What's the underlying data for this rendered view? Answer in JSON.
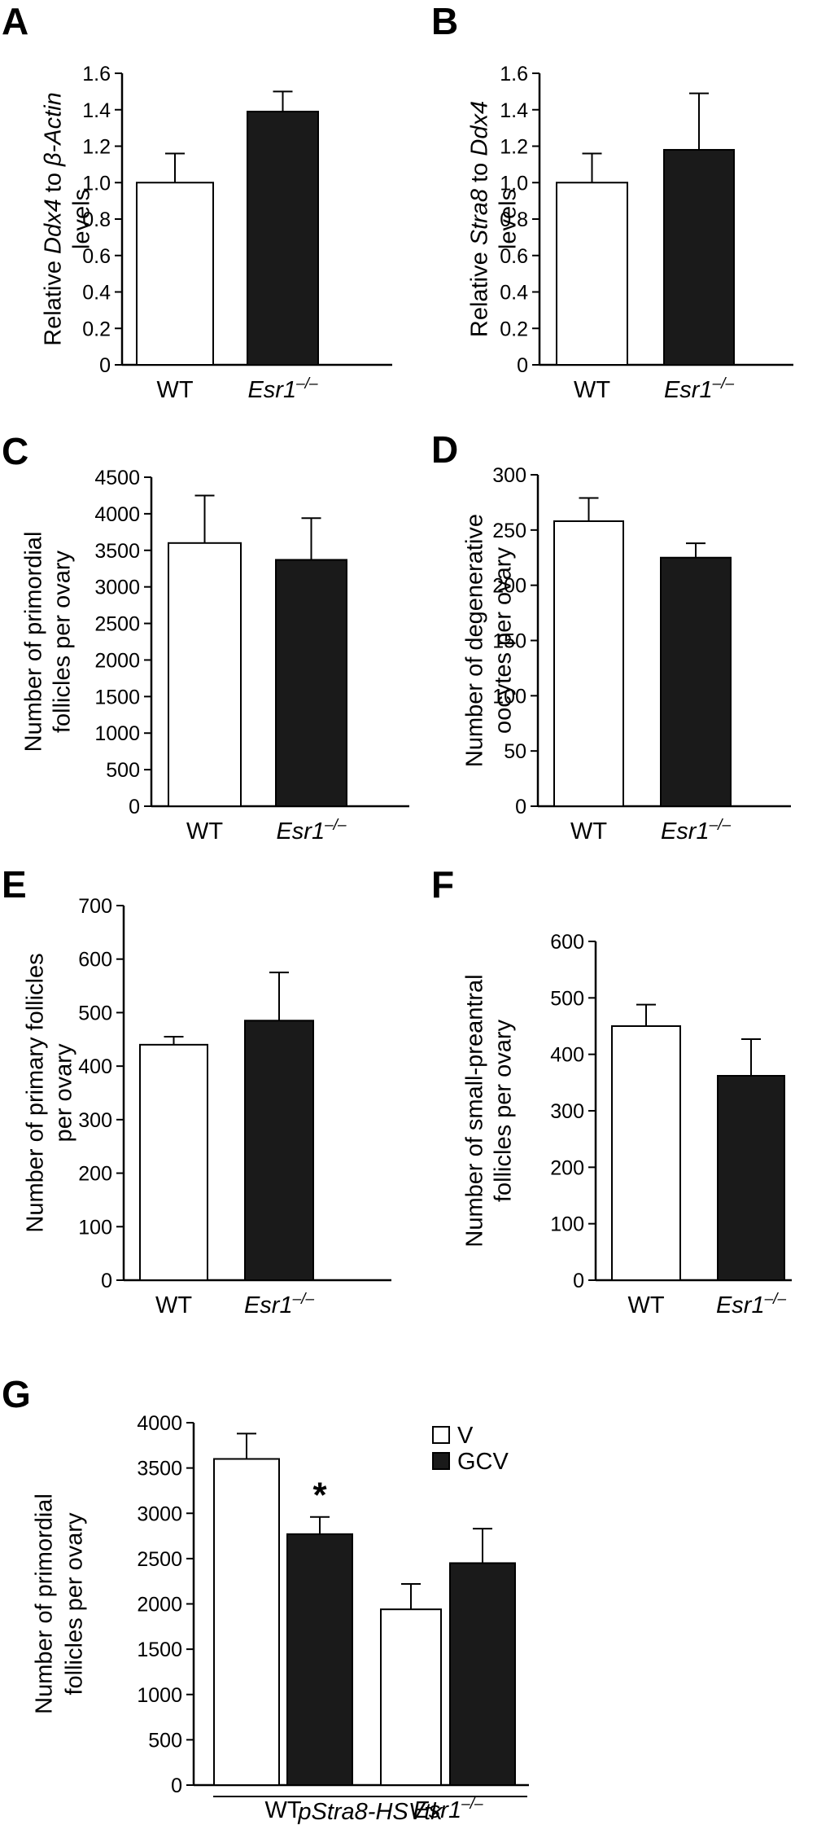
{
  "chart_data": [
    {
      "id": "A",
      "type": "bar",
      "panel_label": "A",
      "categories": [
        {
          "text": "WT",
          "sup": ""
        },
        {
          "text": "Esr1",
          "sup": "–/–",
          "italic": true
        }
      ],
      "values": [
        1.0,
        1.39
      ],
      "errors": [
        0.16,
        0.11
      ],
      "fills": [
        "#ffffff",
        "#1a1a1a"
      ],
      "ylim": [
        0,
        1.6
      ],
      "yticks": [
        0,
        0.2,
        0.4,
        0.6,
        0.8,
        1.0,
        1.2,
        1.4,
        1.6
      ],
      "ytick_labels": [
        "0",
        "0.2",
        "0.4",
        "0.6",
        "0.8",
        "1.0",
        "1.2",
        "1.4",
        "1.6"
      ],
      "ylabel_lines": [
        [
          {
            "t": "Relative "
          },
          {
            "t": "Ddx4",
            "i": true
          },
          {
            "t": " to "
          },
          {
            "t": "β-Actin",
            "i": true
          }
        ],
        [
          {
            "t": "levels"
          }
        ]
      ]
    },
    {
      "id": "B",
      "type": "bar",
      "panel_label": "B",
      "categories": [
        {
          "text": "WT",
          "sup": ""
        },
        {
          "text": "Esr1",
          "sup": "–/–",
          "italic": true
        }
      ],
      "values": [
        1.0,
        1.18
      ],
      "errors": [
        0.16,
        0.31
      ],
      "fills": [
        "#ffffff",
        "#1a1a1a"
      ],
      "ylim": [
        0,
        1.6
      ],
      "yticks": [
        0,
        0.2,
        0.4,
        0.6,
        0.8,
        1.0,
        1.2,
        1.4,
        1.6
      ],
      "ytick_labels": [
        "0",
        "0.2",
        "0.4",
        "0.6",
        "0.8",
        "1.0",
        "1.2",
        "1.4",
        "1.6"
      ],
      "ylabel_lines": [
        [
          {
            "t": "Relative "
          },
          {
            "t": "Stra8",
            "i": true
          },
          {
            "t": " to "
          },
          {
            "t": "Ddx4",
            "i": true
          }
        ],
        [
          {
            "t": "levels"
          }
        ]
      ]
    },
    {
      "id": "C",
      "type": "bar",
      "panel_label": "C",
      "categories": [
        {
          "text": "WT",
          "sup": ""
        },
        {
          "text": "Esr1",
          "sup": "–/–",
          "italic": true
        }
      ],
      "values": [
        3600,
        3370
      ],
      "errors": [
        650,
        570
      ],
      "fills": [
        "#ffffff",
        "#1a1a1a"
      ],
      "ylim": [
        0,
        4500
      ],
      "yticks": [
        0,
        500,
        1000,
        1500,
        2000,
        2500,
        3000,
        3500,
        4000,
        4500
      ],
      "ytick_labels": [
        "0",
        "500",
        "1000",
        "1500",
        "2000",
        "2500",
        "3000",
        "3500",
        "4000",
        "4500"
      ],
      "ylabel_lines": [
        [
          {
            "t": "Number of primordial"
          }
        ],
        [
          {
            "t": "follicles per ovary"
          }
        ]
      ]
    },
    {
      "id": "D",
      "type": "bar",
      "panel_label": "D",
      "categories": [
        {
          "text": "WT",
          "sup": ""
        },
        {
          "text": "Esr1",
          "sup": "–/–",
          "italic": true
        }
      ],
      "values": [
        258,
        225
      ],
      "errors": [
        21,
        13
      ],
      "fills": [
        "#ffffff",
        "#1a1a1a"
      ],
      "ylim": [
        0,
        300
      ],
      "yticks": [
        0,
        50,
        100,
        150,
        200,
        250,
        300
      ],
      "ytick_labels": [
        "0",
        "50",
        "100",
        "150",
        "200",
        "250",
        "300"
      ],
      "ylabel_lines": [
        [
          {
            "t": "Number of degenerative"
          }
        ],
        [
          {
            "t": "oocytes per ovary"
          }
        ]
      ]
    },
    {
      "id": "E",
      "type": "bar",
      "panel_label": "E",
      "categories": [
        {
          "text": "WT",
          "sup": ""
        },
        {
          "text": "Esr1",
          "sup": "–/–",
          "italic": true
        }
      ],
      "values": [
        440,
        485
      ],
      "errors": [
        15,
        90
      ],
      "fills": [
        "#ffffff",
        "#1a1a1a"
      ],
      "ylim": [
        0,
        700
      ],
      "yticks": [
        0,
        100,
        200,
        300,
        400,
        500,
        600,
        700
      ],
      "ytick_labels": [
        "0",
        "100",
        "200",
        "300",
        "400",
        "500",
        "600",
        "700"
      ],
      "ylabel_lines": [
        [
          {
            "t": "Number of primary follicles"
          }
        ],
        [
          {
            "t": "per ovary"
          }
        ]
      ]
    },
    {
      "id": "F",
      "type": "bar",
      "panel_label": "F",
      "categories": [
        {
          "text": "WT",
          "sup": ""
        },
        {
          "text": "Esr1",
          "sup": "–/–",
          "italic": true
        }
      ],
      "values": [
        450,
        362
      ],
      "errors": [
        38,
        65
      ],
      "fills": [
        "#ffffff",
        "#1a1a1a"
      ],
      "ylim": [
        0,
        600
      ],
      "yticks": [
        0,
        100,
        200,
        300,
        400,
        500,
        600
      ],
      "ytick_labels": [
        "0",
        "100",
        "200",
        "300",
        "400",
        "500",
        "600"
      ],
      "ylabel_lines": [
        [
          {
            "t": "Number of small-preantral"
          }
        ],
        [
          {
            "t": "follicles per ovary"
          }
        ]
      ]
    },
    {
      "id": "G",
      "type": "bar",
      "panel_label": "G",
      "categories": [
        {
          "text": "WT",
          "sup": ""
        },
        {
          "text": "Esr1",
          "sup": "–/–",
          "italic": true
        }
      ],
      "series": [
        {
          "name": "V",
          "fill": "#ffffff",
          "values": [
            3600,
            1940
          ],
          "errors": [
            280,
            280
          ]
        },
        {
          "name": "GCV",
          "fill": "#1a1a1a",
          "values": [
            2770,
            2450
          ],
          "errors": [
            190,
            380
          ]
        }
      ],
      "significance": [
        {
          "series": 1,
          "category": 0,
          "symbol": "*"
        }
      ],
      "group_label": "pStra8-HSVtk",
      "ylim": [
        0,
        4000
      ],
      "yticks": [
        0,
        500,
        1000,
        1500,
        2000,
        2500,
        3000,
        3500,
        4000
      ],
      "ytick_labels": [
        "0",
        "500",
        "1000",
        "1500",
        "2000",
        "2500",
        "3000",
        "3500",
        "4000"
      ],
      "ylabel_lines": [
        [
          {
            "t": "Number of primordial"
          }
        ],
        [
          {
            "t": "follicles per ovary"
          }
        ]
      ],
      "legend_position": "top-right"
    }
  ]
}
